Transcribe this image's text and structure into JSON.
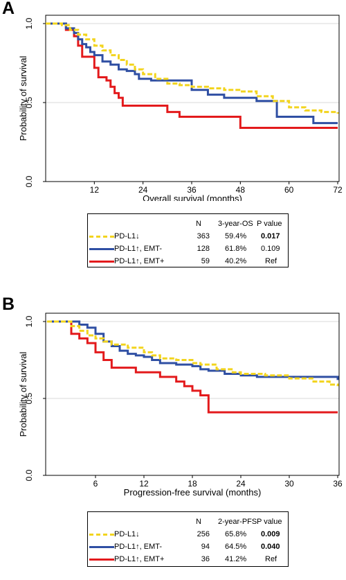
{
  "chart_data": [
    {
      "panel": "A",
      "type": "line",
      "xlabel": "Overall survival (months)",
      "ylabel": "Probability of survival",
      "xticks": [
        "12",
        "24",
        "36",
        "48",
        "60",
        "72"
      ],
      "yticks": [
        "0.0",
        "0.5",
        "1.0"
      ],
      "xlim": [
        0,
        72
      ],
      "ylim": [
        0,
        1
      ],
      "grid_lines_y": [
        0.5,
        1.0
      ],
      "legend_headers": [
        "N",
        "3-year-OS",
        "P value"
      ],
      "series": [
        {
          "name": "PD-L1↓",
          "color": "#f2d41e",
          "style": "dashed",
          "n": "363",
          "rate": "59.4%",
          "p": "0.017",
          "p_bold": true,
          "points": [
            [
              0,
              1
            ],
            [
              2,
              1
            ],
            [
              4,
              0.99
            ],
            [
              6,
              0.96
            ],
            [
              8,
              0.93
            ],
            [
              10,
              0.9
            ],
            [
              12,
              0.86
            ],
            [
              14,
              0.83
            ],
            [
              16,
              0.8
            ],
            [
              18,
              0.77
            ],
            [
              20,
              0.74
            ],
            [
              22,
              0.71
            ],
            [
              24,
              0.68
            ],
            [
              27,
              0.65
            ],
            [
              30,
              0.62
            ],
            [
              33,
              0.61
            ],
            [
              36,
              0.6
            ],
            [
              40,
              0.59
            ],
            [
              44,
              0.58
            ],
            [
              48,
              0.57
            ],
            [
              52,
              0.54
            ],
            [
              56,
              0.51
            ],
            [
              60,
              0.47
            ],
            [
              64,
              0.45
            ],
            [
              68,
              0.44
            ],
            [
              72,
              0.43
            ]
          ]
        },
        {
          "name": "PD-L1↑, EMT-",
          "color": "#2f4fa3",
          "style": "solid",
          "n": "128",
          "rate": "61.8%",
          "p": "0.109",
          "p_bold": false,
          "points": [
            [
              0,
              1
            ],
            [
              3,
              1
            ],
            [
              5,
              0.97
            ],
            [
              7,
              0.94
            ],
            [
              8,
              0.9
            ],
            [
              9,
              0.87
            ],
            [
              10,
              0.85
            ],
            [
              11,
              0.82
            ],
            [
              12,
              0.8
            ],
            [
              14,
              0.76
            ],
            [
              16,
              0.74
            ],
            [
              18,
              0.71
            ],
            [
              20,
              0.7
            ],
            [
              22,
              0.68
            ],
            [
              23,
              0.65
            ],
            [
              26,
              0.64
            ],
            [
              30,
              0.64
            ],
            [
              33,
              0.64
            ],
            [
              36,
              0.58
            ],
            [
              40,
              0.55
            ],
            [
              44,
              0.53
            ],
            [
              48,
              0.53
            ],
            [
              52,
              0.51
            ],
            [
              56,
              0.51
            ],
            [
              57,
              0.41
            ],
            [
              60,
              0.41
            ],
            [
              64,
              0.41
            ],
            [
              66,
              0.37
            ],
            [
              72,
              0.37
            ]
          ]
        },
        {
          "name": "PD-L1↑, EMT+",
          "color": "#e31a1c",
          "style": "solid",
          "n": "59",
          "rate": "40.2%",
          "p": "Ref",
          "p_bold": false,
          "points": [
            [
              0,
              1
            ],
            [
              4,
              1
            ],
            [
              5,
              0.96
            ],
            [
              7,
              0.92
            ],
            [
              8,
              0.86
            ],
            [
              9,
              0.79
            ],
            [
              11,
              0.79
            ],
            [
              12,
              0.72
            ],
            [
              13,
              0.66
            ],
            [
              15,
              0.64
            ],
            [
              16,
              0.6
            ],
            [
              17,
              0.56
            ],
            [
              18,
              0.53
            ],
            [
              19,
              0.48
            ],
            [
              22,
              0.48
            ],
            [
              25,
              0.48
            ],
            [
              28,
              0.48
            ],
            [
              30,
              0.44
            ],
            [
              33,
              0.41
            ],
            [
              36,
              0.41
            ],
            [
              40,
              0.41
            ],
            [
              44,
              0.41
            ],
            [
              48,
              0.34
            ],
            [
              52,
              0.34
            ],
            [
              56,
              0.34
            ],
            [
              60,
              0.34
            ],
            [
              66,
              0.34
            ],
            [
              72,
              0.34
            ]
          ]
        }
      ]
    },
    {
      "panel": "B",
      "type": "line",
      "xlabel": "Progression-free survival (months)",
      "ylabel": "Probability of survival",
      "xticks": [
        "6",
        "12",
        "18",
        "24",
        "30",
        "36"
      ],
      "yticks": [
        "0.0",
        "0.5",
        "1.0"
      ],
      "xlim": [
        0,
        36
      ],
      "ylim": [
        0,
        1
      ],
      "grid_lines_y": [
        0.5,
        1.0
      ],
      "legend_headers": [
        "N",
        "2-year-PFS",
        "P value"
      ],
      "series": [
        {
          "name": "PD-L1↓",
          "color": "#f2d41e",
          "style": "dashed",
          "n": "256",
          "rate": "65.8%",
          "p": "0.009",
          "p_bold": true,
          "points": [
            [
              0,
              1
            ],
            [
              2,
              1
            ],
            [
              3,
              0.97
            ],
            [
              4,
              0.94
            ],
            [
              5,
              0.91
            ],
            [
              6,
              0.89
            ],
            [
              7,
              0.87
            ],
            [
              8,
              0.85
            ],
            [
              10,
              0.83
            ],
            [
              12,
              0.8
            ],
            [
              13,
              0.78
            ],
            [
              14,
              0.76
            ],
            [
              16,
              0.75
            ],
            [
              18,
              0.73
            ],
            [
              19,
              0.72
            ],
            [
              21,
              0.69
            ],
            [
              23,
              0.67
            ],
            [
              24,
              0.66
            ],
            [
              27,
              0.65
            ],
            [
              30,
              0.63
            ],
            [
              33,
              0.61
            ],
            [
              35,
              0.59
            ],
            [
              36,
              0.58
            ]
          ]
        },
        {
          "name": "PD-L1↑, EMT-",
          "color": "#2f4fa3",
          "style": "solid",
          "n": "94",
          "rate": "64.5%",
          "p": "0.040",
          "p_bold": true,
          "points": [
            [
              0,
              1
            ],
            [
              3,
              1
            ],
            [
              4,
              0.98
            ],
            [
              5,
              0.96
            ],
            [
              6,
              0.92
            ],
            [
              7,
              0.87
            ],
            [
              8,
              0.84
            ],
            [
              9,
              0.81
            ],
            [
              10,
              0.79
            ],
            [
              11,
              0.78
            ],
            [
              12,
              0.77
            ],
            [
              13,
              0.75
            ],
            [
              14,
              0.73
            ],
            [
              16,
              0.72
            ],
            [
              18,
              0.71
            ],
            [
              19,
              0.69
            ],
            [
              20,
              0.68
            ],
            [
              22,
              0.66
            ],
            [
              24,
              0.65
            ],
            [
              26,
              0.64
            ],
            [
              28,
              0.64
            ],
            [
              30,
              0.64
            ],
            [
              33,
              0.64
            ],
            [
              35,
              0.64
            ],
            [
              36,
              0.62
            ]
          ]
        },
        {
          "name": "PD-L1↑, EMT+",
          "color": "#e31a1c",
          "style": "solid",
          "n": "36",
          "rate": "41.2%",
          "p": "Ref",
          "p_bold": false,
          "points": [
            [
              0,
              1
            ],
            [
              2,
              1
            ],
            [
              3,
              0.92
            ],
            [
              4,
              0.89
            ],
            [
              5,
              0.86
            ],
            [
              6,
              0.8
            ],
            [
              7,
              0.75
            ],
            [
              8,
              0.7
            ],
            [
              10,
              0.7
            ],
            [
              11,
              0.67
            ],
            [
              12,
              0.67
            ],
            [
              14,
              0.64
            ],
            [
              16,
              0.61
            ],
            [
              17,
              0.58
            ],
            [
              18,
              0.55
            ],
            [
              19,
              0.52
            ],
            [
              20,
              0.41
            ],
            [
              24,
              0.41
            ],
            [
              28,
              0.41
            ],
            [
              32,
              0.41
            ],
            [
              36,
              0.41
            ]
          ]
        }
      ]
    }
  ]
}
